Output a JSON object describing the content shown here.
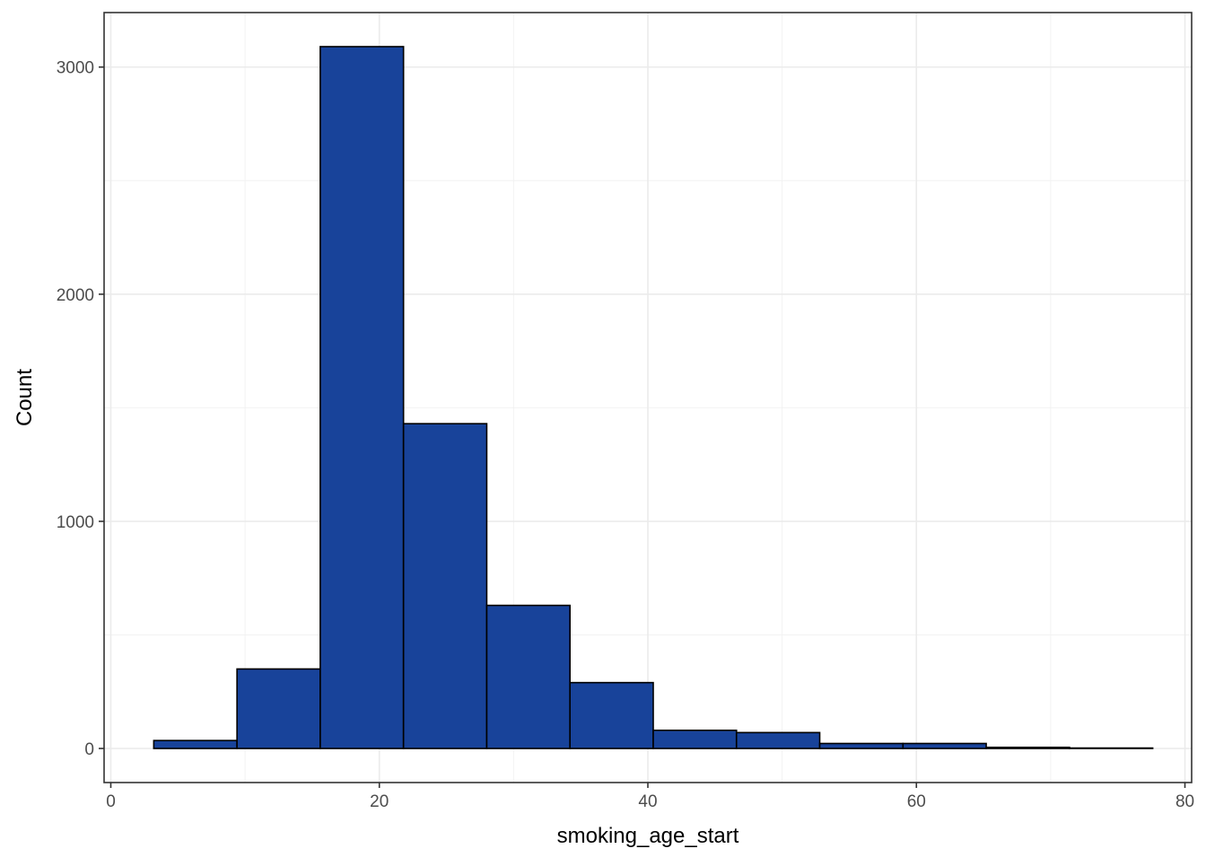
{
  "chart_data": {
    "type": "bar",
    "subtype": "histogram",
    "xlabel": "smoking_age_start",
    "ylabel": "Count",
    "xlim": [
      -0.5,
      80.5
    ],
    "ylim": [
      -150,
      3240
    ],
    "x_ticks": [
      0,
      20,
      40,
      60,
      80
    ],
    "x_tick_labels": [
      "0",
      "20",
      "40",
      "60",
      "80"
    ],
    "y_ticks": [
      0,
      1000,
      2000,
      3000
    ],
    "y_tick_labels": [
      "0",
      "1000",
      "2000",
      "3000"
    ],
    "grid": true,
    "legend": "none",
    "bins": [
      {
        "x0": 3.2,
        "x1": 9.4,
        "count": 35
      },
      {
        "x0": 9.4,
        "x1": 15.6,
        "count": 350
      },
      {
        "x0": 15.6,
        "x1": 21.8,
        "count": 3090
      },
      {
        "x0": 21.8,
        "x1": 28.0,
        "count": 1430
      },
      {
        "x0": 28.0,
        "x1": 34.2,
        "count": 630
      },
      {
        "x0": 34.2,
        "x1": 40.4,
        "count": 290
      },
      {
        "x0": 40.4,
        "x1": 46.6,
        "count": 80
      },
      {
        "x0": 46.6,
        "x1": 52.8,
        "count": 70
      },
      {
        "x0": 52.8,
        "x1": 59.0,
        "count": 22
      },
      {
        "x0": 59.0,
        "x1": 65.2,
        "count": 22
      },
      {
        "x0": 65.2,
        "x1": 71.4,
        "count": 5
      },
      {
        "x0": 71.4,
        "x1": 77.6,
        "count": 2
      }
    ]
  },
  "colors": {
    "bar_fill": "#18439A",
    "bar_stroke": "#000000",
    "panel_border": "#333333",
    "grid_major": "#EBEBEB",
    "grid_minor": "#F2F2F2",
    "tick_text": "#4d4d4d",
    "title_text": "#000000"
  }
}
